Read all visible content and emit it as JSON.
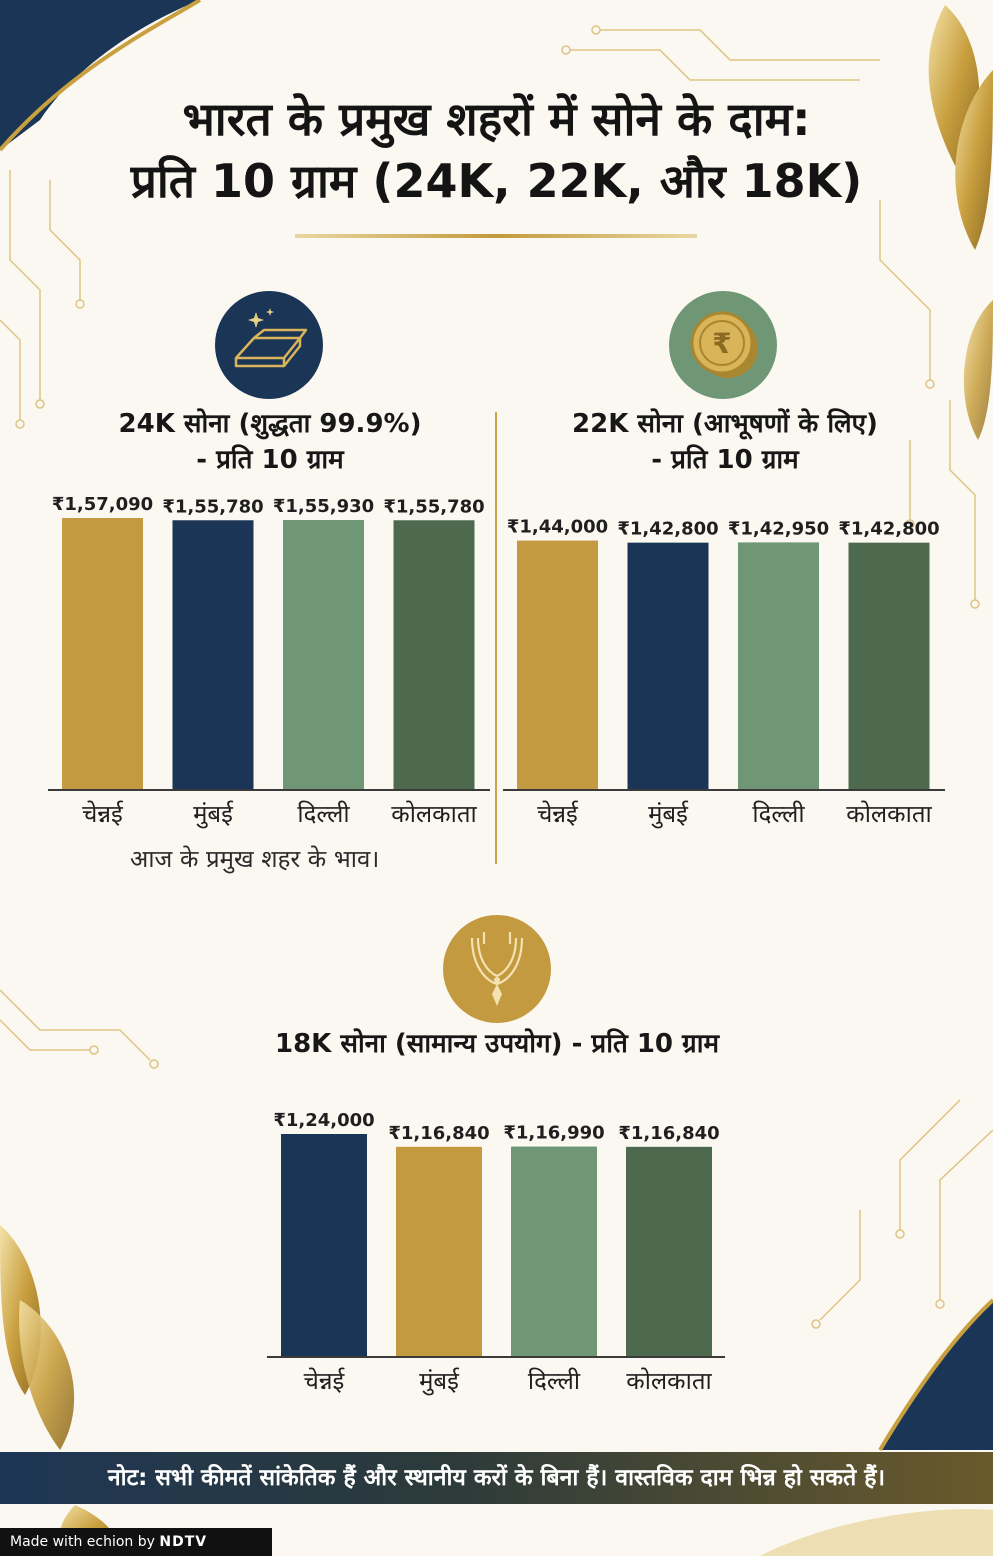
{
  "header": {
    "title_line1": "भारत के प्रमुख शहरों में सोने के दाम:",
    "title_line2": "प्रति 10 ग्राम (24K, 22K, और 18K)"
  },
  "panels": {
    "k24": {
      "title_line1": "24K सोना (शुद्धता 99.9%)",
      "title_line2": "- प्रति 10 ग्राम",
      "icon": "gold-bar-icon",
      "footnote": "आज के प्रमुख शहर के भाव।"
    },
    "k22": {
      "title_line1": "22K सोना (आभूषणों के लिए)",
      "title_line2": "- प्रति 10 ग्राम",
      "icon": "rupee-coin-icon"
    },
    "k18": {
      "title_line1": "18K सोना (सामान्य उपयोग) - प्रति 10 ग्राम",
      "icon": "necklace-icon"
    }
  },
  "colors": {
    "gold": "#c39a40",
    "navy": "#1b3556",
    "sage": "#6f9776",
    "forest": "#4d6a4f"
  },
  "chart_data": [
    {
      "type": "bar",
      "categories": [
        "चेन्नई",
        "मुंबई",
        "दिल्ली",
        "कोलकाता"
      ],
      "values": [
        157090,
        155780,
        155930,
        155780
      ],
      "labels": [
        "₹1,57,090",
        "₹1,55,780",
        "₹1,55,930",
        "₹1,55,780"
      ],
      "bar_colors": [
        "#c39a40",
        "#1b3556",
        "#6f9776",
        "#4d6a4f"
      ],
      "ylim": [
        0,
        157090
      ]
    },
    {
      "type": "bar",
      "categories": [
        "चेन्नई",
        "मुंबई",
        "दिल्ली",
        "कोलकाता"
      ],
      "values": [
        144000,
        142800,
        142950,
        142800
      ],
      "labels": [
        "₹1,44,000",
        "₹1,42,800",
        "₹1,42,950",
        "₹1,42,800"
      ],
      "bar_colors": [
        "#c39a40",
        "#1b3556",
        "#6f9776",
        "#4d6a4f"
      ],
      "ylim": [
        0,
        157090
      ]
    },
    {
      "type": "bar",
      "categories": [
        "चेन्नई",
        "मुंबई",
        "दिल्ली",
        "कोलकाता"
      ],
      "values": [
        124000,
        116840,
        116990,
        116840
      ],
      "labels": [
        "₹1,24,000",
        "₹1,16,840",
        "₹1,16,990",
        "₹1,16,840"
      ],
      "bar_colors": [
        "#1b3556",
        "#c39a40",
        "#6f9776",
        "#4d6a4f"
      ],
      "ylim": [
        0,
        124000
      ]
    }
  ],
  "note": "नोट: सभी कीमतें सांकेतिक हैं और स्थानीय करों के बिना हैं। वास्तविक दाम भिन्न हो सकते हैं।",
  "branding": {
    "made_with": "Made with",
    "echion": "echion",
    "by": "by",
    "ndtv": "NDTV"
  }
}
